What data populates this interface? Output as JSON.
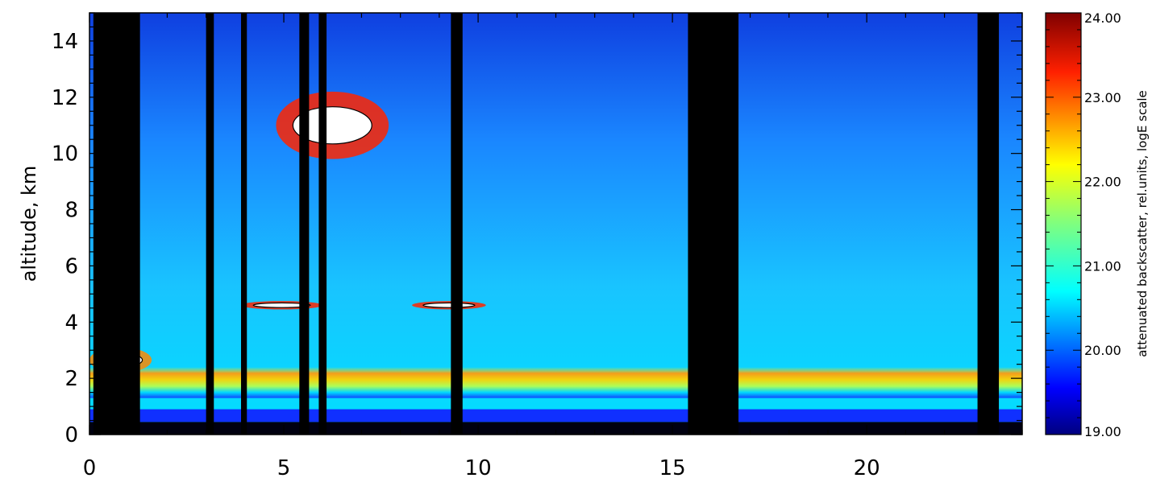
{
  "chart_data": {
    "type": "heatmap",
    "title": "",
    "xlabel": "",
    "ylabel": "altitude, km",
    "xlim": [
      0,
      24
    ],
    "ylim": [
      0,
      15
    ],
    "x_ticks": [
      0,
      5,
      10,
      15,
      20
    ],
    "y_ticks": [
      0,
      2,
      4,
      6,
      8,
      10,
      12,
      14
    ],
    "colorbar": {
      "label": "attenuated backscatter, rel.units, logE scale",
      "range": [
        19.0,
        24.0
      ],
      "ticks": [
        "19.00",
        "20.00",
        "21.00",
        "22.00",
        "23.00",
        "24.00"
      ],
      "colormap": "jet"
    },
    "blackout_columns": [
      {
        "x0": 0.1,
        "x1": 1.3
      },
      {
        "x0": 3.0,
        "x1": 3.2
      },
      {
        "x0": 3.9,
        "x1": 4.05
      },
      {
        "x0": 5.4,
        "x1": 5.65
      },
      {
        "x0": 5.9,
        "x1": 6.1
      },
      {
        "x0": 9.3,
        "x1": 9.6
      },
      {
        "x0": 15.4,
        "x1": 16.7
      },
      {
        "x0": 22.85,
        "x1": 23.4
      }
    ],
    "features": [
      {
        "name": "aerosol boundary layer",
        "x0": 0,
        "x1": 24,
        "y0": 1.3,
        "y1": 2.4,
        "level": 22.3
      },
      {
        "name": "cirrus cloud",
        "x0": 4.8,
        "x1": 7.7,
        "y0": 9.8,
        "y1": 12.2,
        "level": 24.0
      },
      {
        "name": "mid-level cloud",
        "x0": 3.9,
        "x1": 6.0,
        "y0": 4.45,
        "y1": 4.75,
        "level": 24.0
      },
      {
        "name": "mid-level cloud",
        "x0": 8.3,
        "x1": 10.2,
        "y0": 4.45,
        "y1": 4.75,
        "level": 24.0
      },
      {
        "name": "low cloud",
        "x0": 0.0,
        "x1": 1.6,
        "y0": 2.2,
        "y1": 3.1,
        "level": 23.5
      }
    ],
    "grid": false,
    "legend": "none"
  }
}
